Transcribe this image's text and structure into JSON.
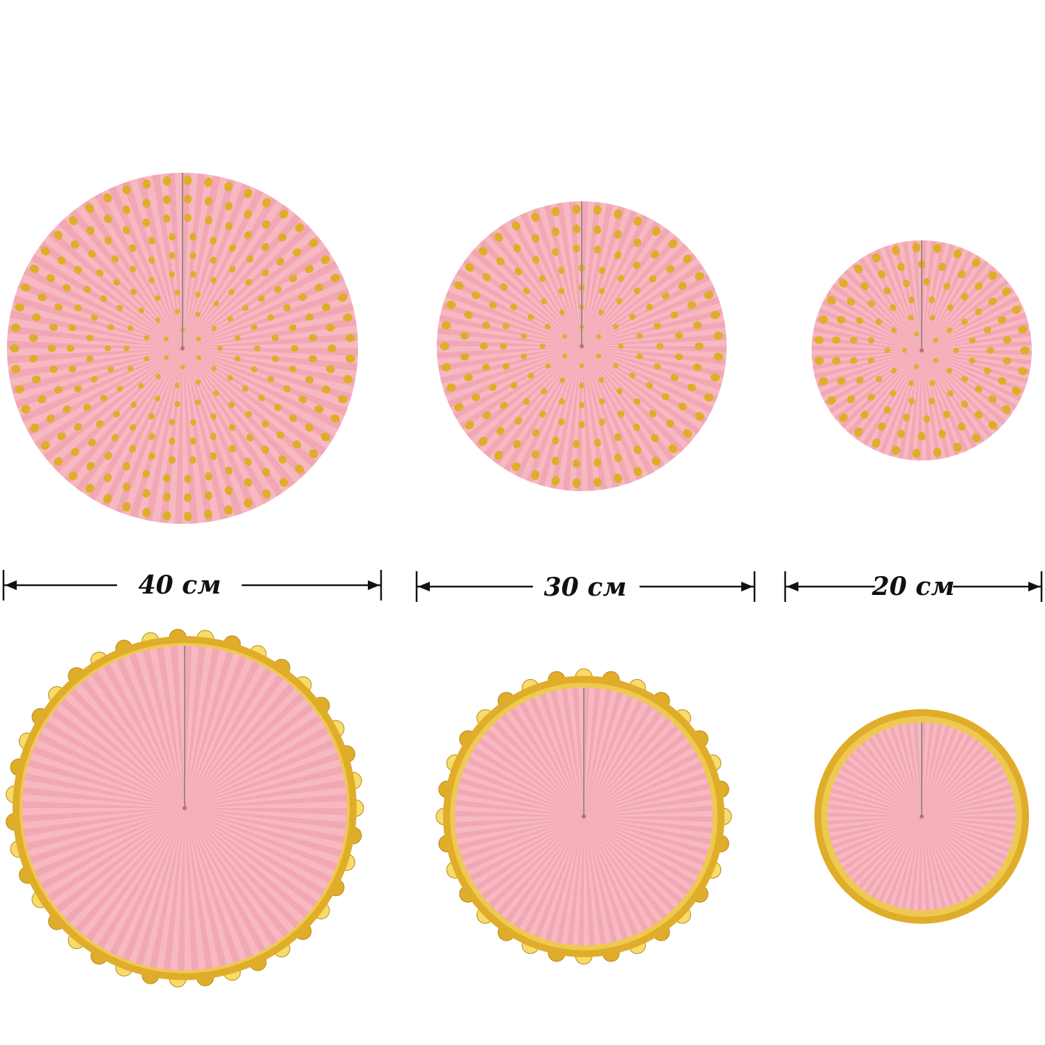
{
  "dimensions": [
    {
      "label": "40 см"
    },
    {
      "label": "30 см"
    },
    {
      "label": "20 см"
    }
  ],
  "colors": {
    "pink": "#f6b9c2",
    "pink_dark": "#e98a9c",
    "gold": "#e0ad2a",
    "gold_light": "#f7dc6a",
    "line": "#111111"
  },
  "fans": [
    {
      "style": "polka-dot",
      "size_label": "40 см"
    },
    {
      "style": "polka-dot",
      "size_label": "30 см"
    },
    {
      "style": "polka-dot",
      "size_label": "20 см"
    },
    {
      "style": "gold-scalloped-border",
      "size_label": "40 см"
    },
    {
      "style": "gold-scalloped-border",
      "size_label": "30 см"
    },
    {
      "style": "gold-foil-border",
      "size_label": "20 см"
    }
  ]
}
